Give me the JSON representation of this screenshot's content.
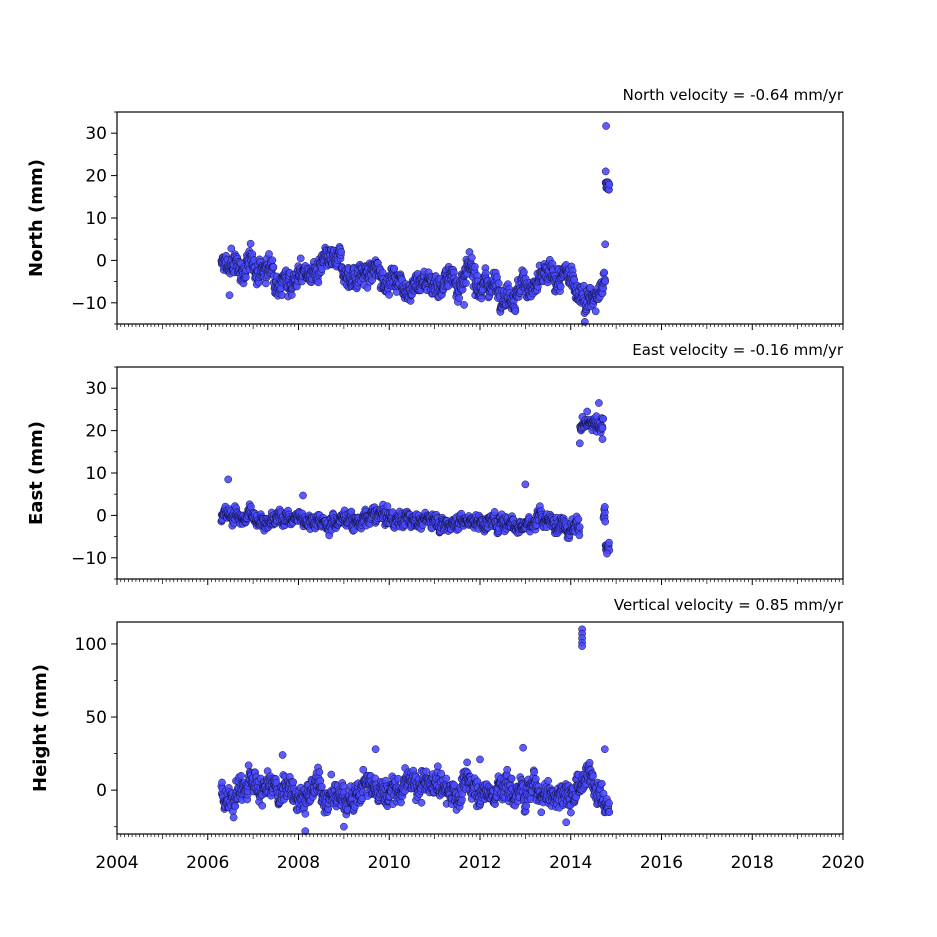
{
  "chart_data": [
    {
      "type": "scatter",
      "title": "North velocity = -0.64 mm/yr",
      "ylabel": "North (mm)",
      "xlabel": "",
      "xlim": [
        2004,
        2020
      ],
      "ylim": [
        -15,
        35
      ],
      "yticks": [
        -10,
        0,
        10,
        20,
        30
      ],
      "xticks": [
        2004,
        2006,
        2008,
        2010,
        2012,
        2014,
        2016,
        2018,
        2020
      ],
      "data_start": 2006.3,
      "data_end": 2014.85,
      "trend_start": -1.5,
      "trend_end": -6.5,
      "scatter": 2.2,
      "marker_color": "#4a4aff",
      "events": [
        {
          "start": 2014.3,
          "end": 2014.72,
          "offset": -3.0
        },
        {
          "start": 2014.76,
          "end": 2014.85,
          "value": 17.5,
          "spread": 1.5
        }
      ],
      "outliers": [
        {
          "x": 2014.78,
          "y": 31.7
        },
        {
          "x": 2014.77,
          "y": 21.0
        },
        {
          "x": 2014.76,
          "y": 3.8
        },
        {
          "x": 2006.52,
          "y": 2.8
        },
        {
          "x": 2006.48,
          "y": -8.2
        },
        {
          "x": 2011.65,
          "y": -10.5
        },
        {
          "x": 2014.55,
          "y": -12.0
        }
      ]
    },
    {
      "type": "scatter",
      "title": "East velocity = -0.16 mm/yr",
      "ylabel": "East (mm)",
      "xlabel": "",
      "xlim": [
        2004,
        2020
      ],
      "ylim": [
        -15,
        35
      ],
      "yticks": [
        -10,
        0,
        10,
        20,
        30
      ],
      "xticks": [
        2004,
        2006,
        2008,
        2010,
        2012,
        2014,
        2016,
        2018,
        2020
      ],
      "data_start": 2006.3,
      "data_end": 2014.85,
      "trend_start": 0.0,
      "trend_end": -1.5,
      "scatter": 1.4,
      "marker_color": "#4a4aff",
      "events": [
        {
          "start": 2014.2,
          "end": 2014.72,
          "value": 21.5,
          "spread": 2.0
        },
        {
          "start": 2014.76,
          "end": 2014.85,
          "value": -7.5,
          "spread": 1.0
        }
      ],
      "outliers": [
        {
          "x": 2006.45,
          "y": 8.5
        },
        {
          "x": 2008.1,
          "y": 4.7
        },
        {
          "x": 2013.0,
          "y": 7.3
        },
        {
          "x": 2014.62,
          "y": 26.5
        },
        {
          "x": 2014.7,
          "y": 18.0
        },
        {
          "x": 2014.75,
          "y": 2.0
        },
        {
          "x": 2014.2,
          "y": 17.0
        },
        {
          "x": 2014.8,
          "y": -9.0
        }
      ]
    },
    {
      "type": "scatter",
      "title": "Vertical velocity = 0.85 mm/yr",
      "ylabel": "Height (mm)",
      "xlabel": "",
      "xlim": [
        2004,
        2020
      ],
      "ylim": [
        -30,
        115
      ],
      "yticks": [
        0,
        50,
        100
      ],
      "xticks": [
        2004,
        2006,
        2008,
        2010,
        2012,
        2014,
        2016,
        2018,
        2020
      ],
      "data_start": 2006.3,
      "data_end": 2014.85,
      "trend_start": -3.0,
      "trend_end": 4.0,
      "scatter": 7.5,
      "marker_color": "#4a4aff",
      "events": [],
      "outliers": [
        {
          "x": 2014.25,
          "y": 110.0
        },
        {
          "x": 2014.25,
          "y": 107.0
        },
        {
          "x": 2014.25,
          "y": 104.0
        },
        {
          "x": 2014.25,
          "y": 101.0
        },
        {
          "x": 2014.25,
          "y": 98.5
        },
        {
          "x": 2006.9,
          "y": 17.0
        },
        {
          "x": 2007.65,
          "y": 24.0
        },
        {
          "x": 2009.7,
          "y": 28.0
        },
        {
          "x": 2012.0,
          "y": 21.0
        },
        {
          "x": 2012.95,
          "y": 29.0
        },
        {
          "x": 2014.75,
          "y": 28.0
        },
        {
          "x": 2008.15,
          "y": -28.0
        },
        {
          "x": 2009.0,
          "y": -25.0
        },
        {
          "x": 2013.9,
          "y": -22.0
        }
      ]
    }
  ]
}
